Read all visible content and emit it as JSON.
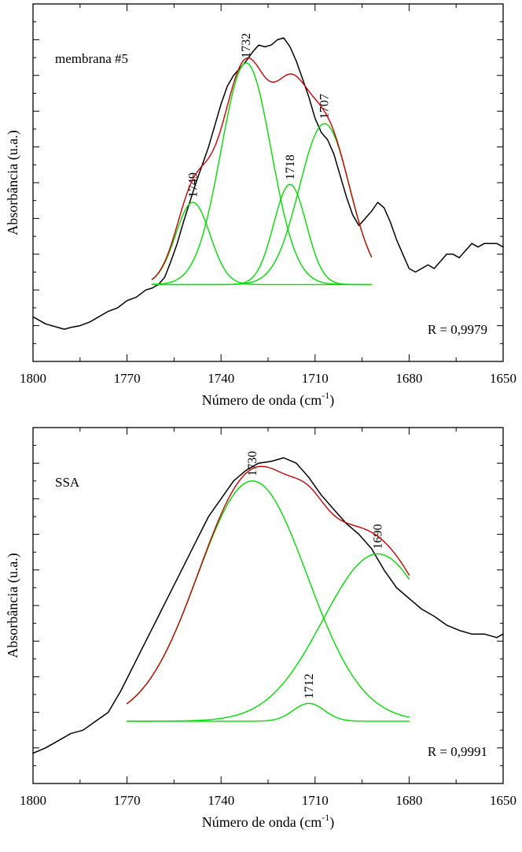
{
  "chart_data": [
    {
      "type": "line",
      "annotation": "membrana #5",
      "xlabel": "Número de onda (cm",
      "xlabel_sup": "-1",
      "xlabel_close": ")",
      "ylabel": "Absorbância (u.a.)",
      "xlim": [
        1800,
        1650
      ],
      "ylim": [
        0,
        1
      ],
      "x_ticks": [
        1800,
        1770,
        1740,
        1710,
        1680,
        1650
      ],
      "r_text": "R = 0,9979",
      "colors": {
        "spectrum": "#000000",
        "fit": "#cc0000",
        "components": "#00dd00"
      },
      "spectrum": {
        "x": [
          1800,
          1796,
          1792,
          1790,
          1788,
          1785,
          1782,
          1779,
          1776,
          1773,
          1770,
          1767,
          1764,
          1762,
          1760,
          1758,
          1756,
          1754,
          1752,
          1750,
          1748,
          1746,
          1744,
          1742,
          1740,
          1738,
          1736,
          1734,
          1732,
          1730,
          1728,
          1726,
          1724,
          1722,
          1720,
          1718,
          1716,
          1714,
          1712,
          1710,
          1708,
          1706,
          1704,
          1702,
          1700,
          1698,
          1696,
          1694,
          1692,
          1690,
          1688,
          1686,
          1684,
          1682,
          1680,
          1678,
          1676,
          1674,
          1672,
          1670,
          1668,
          1666,
          1664,
          1662,
          1660,
          1658,
          1656,
          1654,
          1652,
          1650
        ],
        "y": [
          0.125,
          0.105,
          0.095,
          0.09,
          0.095,
          0.1,
          0.11,
          0.125,
          0.14,
          0.15,
          0.17,
          0.18,
          0.2,
          0.205,
          0.215,
          0.235,
          0.28,
          0.33,
          0.39,
          0.445,
          0.5,
          0.55,
          0.6,
          0.66,
          0.72,
          0.77,
          0.8,
          0.82,
          0.84,
          0.865,
          0.885,
          0.88,
          0.885,
          0.9,
          0.905,
          0.88,
          0.84,
          0.79,
          0.74,
          0.68,
          0.64,
          0.62,
          0.58,
          0.52,
          0.46,
          0.41,
          0.38,
          0.4,
          0.42,
          0.445,
          0.43,
          0.39,
          0.34,
          0.3,
          0.26,
          0.25,
          0.26,
          0.27,
          0.26,
          0.28,
          0.3,
          0.3,
          0.29,
          0.31,
          0.33,
          0.32,
          0.33,
          0.33,
          0.33,
          0.32
        ]
      },
      "fit_range": [
        1762,
        1692
      ],
      "baseline": 0.215,
      "components": [
        {
          "label": "1749",
          "center": 1749,
          "amplitude": 0.23,
          "width": 5.5
        },
        {
          "label": "1732",
          "center": 1732,
          "amplitude": 0.62,
          "width": 8
        },
        {
          "label": "1718",
          "center": 1718,
          "amplitude": 0.28,
          "width": 5.2
        },
        {
          "label": "1707",
          "center": 1707,
          "amplitude": 0.45,
          "width": 8
        }
      ]
    },
    {
      "type": "line",
      "annotation": "SSA",
      "xlabel": "Número de onda (cm",
      "xlabel_sup": "-1",
      "xlabel_close": ")",
      "ylabel": "Absorbância (u.a.)",
      "xlim": [
        1800,
        1650
      ],
      "ylim": [
        0,
        1
      ],
      "x_ticks": [
        1800,
        1770,
        1740,
        1710,
        1680,
        1650
      ],
      "r_text": "R = 0,9991",
      "colors": {
        "spectrum": "#000000",
        "fit": "#cc0000",
        "components": "#00dd00"
      },
      "spectrum": {
        "x": [
          1800,
          1796,
          1792,
          1788,
          1784,
          1780,
          1776,
          1772,
          1768,
          1764,
          1760,
          1756,
          1752,
          1748,
          1744,
          1740,
          1736,
          1732,
          1728,
          1724,
          1720,
          1716,
          1712,
          1708,
          1704,
          1700,
          1696,
          1692,
          1688,
          1684,
          1680,
          1676,
          1672,
          1668,
          1664,
          1660,
          1656,
          1652,
          1650
        ],
        "y": [
          0.085,
          0.1,
          0.12,
          0.14,
          0.15,
          0.175,
          0.2,
          0.26,
          0.33,
          0.4,
          0.47,
          0.54,
          0.61,
          0.68,
          0.75,
          0.8,
          0.85,
          0.88,
          0.9,
          0.905,
          0.915,
          0.9,
          0.86,
          0.81,
          0.77,
          0.73,
          0.7,
          0.66,
          0.6,
          0.55,
          0.52,
          0.49,
          0.47,
          0.445,
          0.43,
          0.42,
          0.42,
          0.41,
          0.42
        ]
      },
      "fit_range": [
        1770,
        1680
      ],
      "baseline": 0.175,
      "components": [
        {
          "label": "1730",
          "center": 1730,
          "amplitude": 0.675,
          "width": 17.5
        },
        {
          "label": "1712",
          "center": 1712,
          "amplitude": 0.05,
          "width": 5
        },
        {
          "label": "1690",
          "center": 1690,
          "amplitude": 0.47,
          "width": 17.5
        }
      ]
    }
  ]
}
